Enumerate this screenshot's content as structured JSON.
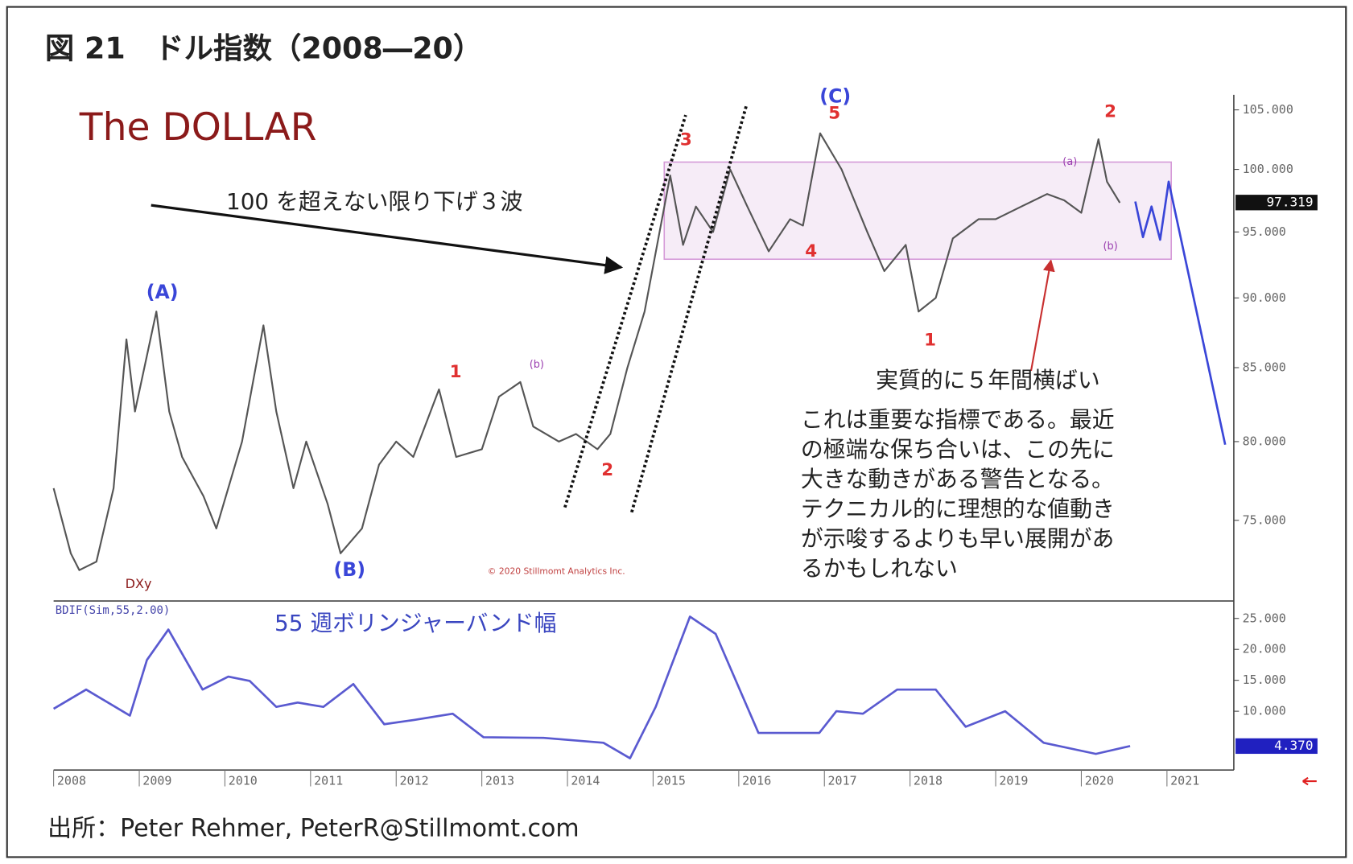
{
  "figure_title": "図 21　ドル指数（2008―20）",
  "source": "出所：Peter Rehmer, PeterR@Stillmomt.com",
  "chart_data": [
    {
      "type": "line",
      "title": "The DOLLAR",
      "copyright": "© 2020 Stillmomt Analytics Inc.",
      "log_scale": true,
      "xlim": [
        2008,
        2021.7
      ],
      "ylim": [
        70.3,
        106.3
      ],
      "yticks": [
        {
          "value": 75,
          "label": "75.000"
        },
        {
          "value": 80,
          "label": "80.000"
        },
        {
          "value": 85,
          "label": "85.000"
        },
        {
          "value": 90,
          "label": "90.000"
        },
        {
          "value": 95,
          "label": "95.000"
        },
        {
          "value": 100,
          "label": "100.000"
        },
        {
          "value": 105,
          "label": "105.000"
        }
      ],
      "current_value": 97.319,
      "x": [
        2008.0,
        2008.2,
        2008.3,
        2008.5,
        2008.7,
        2008.85,
        2008.95,
        2009.2,
        2009.35,
        2009.5,
        2009.75,
        2009.9,
        2010.2,
        2010.45,
        2010.6,
        2010.8,
        2010.95,
        2011.2,
        2011.35,
        2011.6,
        2011.8,
        2012.0,
        2012.2,
        2012.5,
        2012.7,
        2013.0,
        2013.2,
        2013.45,
        2013.6,
        2013.9,
        2014.1,
        2014.35,
        2014.5,
        2014.7,
        2014.9,
        2015.2,
        2015.35,
        2015.5,
        2015.7,
        2015.9,
        2016.1,
        2016.35,
        2016.6,
        2016.75,
        2016.95,
        2017.2,
        2017.5,
        2017.7,
        2017.95,
        2018.1,
        2018.3,
        2018.5,
        2018.8,
        2019.0,
        2019.3,
        2019.6,
        2019.8,
        2020.0,
        2020.2,
        2020.3,
        2020.45
      ],
      "series": [
        {
          "name": "DXy",
          "color": "#555555",
          "values": [
            77,
            73,
            72,
            72.5,
            77,
            87,
            82,
            89,
            82,
            79,
            76.5,
            74.5,
            80,
            88,
            82,
            77,
            80,
            76,
            73,
            74.5,
            78.5,
            80,
            79,
            83.5,
            79,
            79.5,
            83,
            84,
            81,
            80,
            80.5,
            79.5,
            80.5,
            85,
            89,
            99.5,
            94,
            97,
            95,
            100,
            97,
            93.5,
            96,
            95.5,
            103,
            100,
            95,
            92,
            94,
            89,
            90,
            94.5,
            96,
            96,
            97,
            98,
            97.5,
            96.5,
            102.5,
            99,
            97.3
          ]
        },
        {
          "color": "#3a46d8",
          "x": [
            2020.63,
            2020.72,
            2020.82,
            2020.92,
            2021.02,
            2021.68
          ],
          "values": [
            97.4,
            94.6,
            97.0,
            94.4,
            99.0,
            79.8
          ]
        }
      ],
      "range_box": {
        "x": [
          2015.13,
          2021.05
        ],
        "y": [
          92.9,
          100.6
        ],
        "color": "#d59ad8"
      },
      "channel_lines": [
        {
          "x": [
            2013.97,
            2015.38
          ],
          "y": [
            75.8,
            104.55
          ]
        },
        {
          "x": [
            2014.75,
            2016.09
          ],
          "y": [
            75.5,
            105.4
          ]
        }
      ],
      "annotations": [
        {
          "text": "(A)",
          "color": "#3a46d8"
        },
        {
          "text": "(B)",
          "color": "#3a46d8"
        },
        {
          "text": "(C)",
          "color": "#3a46d8"
        },
        {
          "text": "1",
          "color": "#e03030"
        },
        {
          "text": "2",
          "color": "#e03030"
        },
        {
          "text": "3",
          "color": "#e03030"
        },
        {
          "text": "4",
          "color": "#e03030"
        },
        {
          "text": "5",
          "color": "#e03030"
        },
        {
          "text": "1",
          "color": "#e03030"
        },
        {
          "text": "2",
          "color": "#e03030"
        },
        {
          "text": "(b)",
          "color": "#9b3fb0"
        },
        {
          "text": "(a)",
          "color": "#9b3fb0"
        },
        {
          "text": "(b)",
          "color": "#9b3fb0"
        },
        {
          "text": "100 を超えない限り下げ３波",
          "color": "#222222"
        },
        {
          "text": "実質的に５年間横ばい",
          "color": "#222222"
        }
      ],
      "note_lines": [
        "これは重要な指標である。最近",
        "の極端な保ち合いは、この先に",
        "大きな動きがある警告となる。",
        "テクニカル的に理想的な値動き",
        "が示唆するよりも早い展開があ",
        "るかもしれない"
      ]
    },
    {
      "type": "line",
      "title": "55 週ボリンジャーバンド幅",
      "label": "BDIF(Sim,55,2.00)",
      "xlim": [
        2008,
        2021.7
      ],
      "ylim": [
        0.5,
        27.4
      ],
      "xticks": [
        2008,
        2009,
        2010,
        2011,
        2012,
        2013,
        2014,
        2015,
        2016,
        2017,
        2018,
        2019,
        2020,
        2021
      ],
      "yticks": [
        {
          "value": 10,
          "label": "10.000"
        },
        {
          "value": 15,
          "label": "15.000"
        },
        {
          "value": 20,
          "label": "20.000"
        },
        {
          "value": 25,
          "label": "25.000"
        }
      ],
      "current_value": {
        "value": 4.37,
        "label": "4.370"
      },
      "x": [
        2008.0,
        2008.38,
        2008.89,
        2009.09,
        2009.34,
        2009.74,
        2010.04,
        2010.29,
        2010.6,
        2010.85,
        2011.15,
        2011.5,
        2011.86,
        2012.21,
        2012.66,
        2013.02,
        2013.72,
        2014.42,
        2014.73,
        2015.03,
        2015.43,
        2015.73,
        2016.23,
        2016.94,
        2017.14,
        2017.45,
        2017.85,
        2018.3,
        2018.65,
        2019.11,
        2019.56,
        2020.17,
        2020.57
      ],
      "series": [
        {
          "color": "#5a5ad0",
          "values": [
            10.4,
            13.5,
            9.3,
            18.3,
            23.2,
            13.5,
            15.6,
            14.9,
            10.7,
            11.4,
            10.7,
            14.4,
            7.9,
            8.6,
            9.6,
            5.8,
            5.7,
            4.9,
            2.4,
            10.7,
            25.3,
            22.5,
            6.5,
            6.5,
            10,
            9.6,
            13.5,
            13.5,
            7.5,
            10,
            4.9,
            3.1,
            4.37
          ]
        }
      ]
    }
  ]
}
